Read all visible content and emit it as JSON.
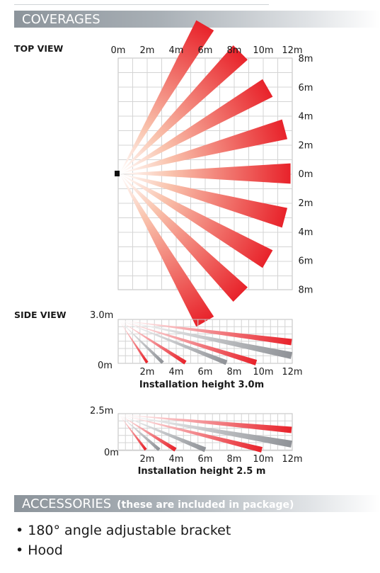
{
  "coverages": {
    "title": "COVERAGES"
  },
  "top_view": {
    "label": "TOP VIEW",
    "x_ticks": [
      "0m",
      "2m",
      "4m",
      "6m",
      "8m",
      "10m",
      "12m"
    ],
    "y_ticks": [
      "8m",
      "6m",
      "4m",
      "2m",
      "0m",
      "2m",
      "4m",
      "6m",
      "8m"
    ],
    "beam_angles_deg": [
      -60,
      -45,
      -30,
      -15,
      0,
      15,
      30,
      45,
      60
    ],
    "beam_color": "#e8222a"
  },
  "side_view_1": {
    "label": "SIDE VIEW",
    "height_label": "3.0m",
    "zero_label": "0m",
    "x_ticks": [
      "2m",
      "4m",
      "6m",
      "8m",
      "10m",
      "12m"
    ],
    "caption": "Installation height 3.0m"
  },
  "side_view_2": {
    "height_label": "2.5m",
    "zero_label": "0m",
    "x_ticks": [
      "2m",
      "4m",
      "6m",
      "8m",
      "10m",
      "12m"
    ],
    "caption": "Installation height 2.5 m"
  },
  "accessories": {
    "title": "ACCESSORIES",
    "subtitle": "(these are included in package)",
    "items": [
      "• 180° angle adjustable bracket",
      "• Hood"
    ]
  }
}
